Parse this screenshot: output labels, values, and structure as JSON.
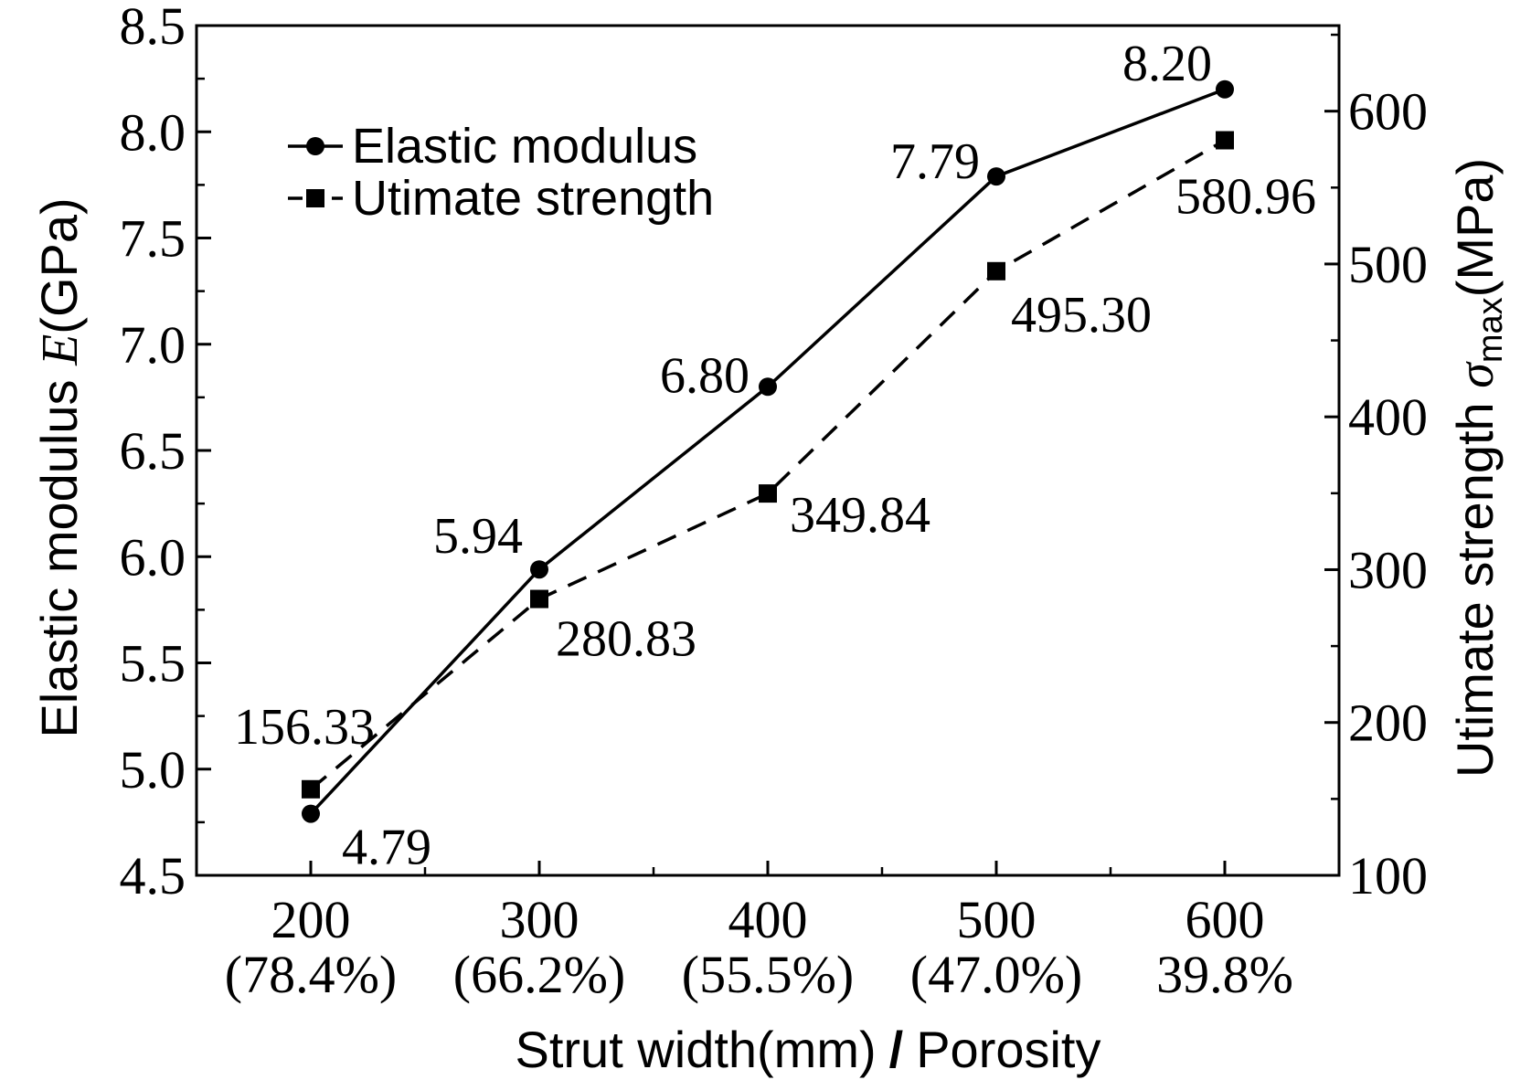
{
  "chart_data": {
    "type": "line",
    "x": [
      200,
      300,
      400,
      500,
      600
    ],
    "x_tick_labels": [
      {
        "value": "200",
        "sub": "(78.4%)"
      },
      {
        "value": "300",
        "sub": "(66.2%)"
      },
      {
        "value": "400",
        "sub": "(55.5%)"
      },
      {
        "value": "500",
        "sub": "(47.0%)"
      },
      {
        "value": "600",
        "sub": "39.8%"
      }
    ],
    "xlim": [
      150,
      650
    ],
    "xlabel_part1": "Strut width(mm)",
    "xlabel_sep": "/",
    "xlabel_part2": "Porosity",
    "ylabel_left_part1": "Elastic modulus ",
    "ylabel_left_italic": "E",
    "ylabel_left_part2": "(GPa)",
    "ylabel_right_part1": "Utimate strength ",
    "ylabel_right_symbol": "σ",
    "ylabel_right_sub": "max",
    "ylabel_right_part2": "(MPa)",
    "ylim_left": [
      4.5,
      8.5
    ],
    "yticks_left": [
      "4.5",
      "5.0",
      "5.5",
      "6.0",
      "6.5",
      "7.0",
      "7.5",
      "8.0",
      "8.5"
    ],
    "ylim_right": [
      100,
      656
    ],
    "yticks_right": [
      "100",
      "200",
      "300",
      "400",
      "500",
      "600"
    ],
    "series": [
      {
        "name": "Elastic modulus",
        "axis": "left",
        "marker": "circle",
        "line_style": "solid",
        "values": [
          4.79,
          5.94,
          6.8,
          7.79,
          8.2
        ],
        "labels": [
          "4.79",
          "5.94",
          "6.80",
          "7.79",
          "8.20"
        ]
      },
      {
        "name": "Utimate strength",
        "axis": "right",
        "marker": "square",
        "line_style": "dashed",
        "values": [
          156.33,
          280.83,
          349.84,
          495.3,
          580.96
        ],
        "labels": [
          "156.33",
          "280.83",
          "349.84",
          "495.30",
          "580.96"
        ]
      }
    ],
    "legend_position": "top-left",
    "grid": false,
    "colors": {
      "line": "#000000",
      "background": "#ffffff"
    }
  }
}
